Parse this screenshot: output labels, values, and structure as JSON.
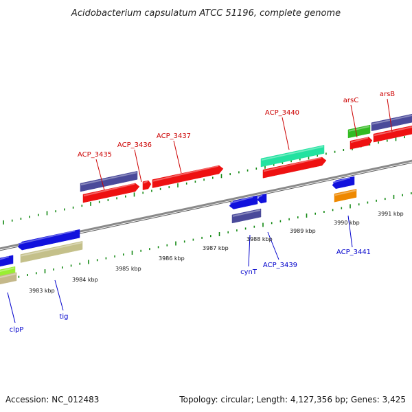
{
  "title": "Acidobacterium capsulatum ATCC 51196, complete genome",
  "footer": {
    "accession": "Accession: NC_012483",
    "topology": "Topology: circular; Length: 4,127,356 bp; Genes: 3,425"
  },
  "colors": {
    "forward_label": "#cc0000",
    "reverse_label": "#0000cc",
    "backbone": "#8a8a8a",
    "tick": "#118811"
  },
  "kbp_labels": [
    "3983 kbp",
    "3984 kbp",
    "3985 kbp",
    "3986 kbp",
    "3987 kbp",
    "3988 kbp",
    "3989 kbp",
    "3990 kbp",
    "3991 kbp"
  ],
  "gene_labels": [
    {
      "text": "ACP_3435",
      "strand": "forward"
    },
    {
      "text": "ACP_3436",
      "strand": "forward"
    },
    {
      "text": "ACP_3437",
      "strand": "forward"
    },
    {
      "text": "ACP_3440",
      "strand": "forward"
    },
    {
      "text": "arsC",
      "strand": "forward"
    },
    {
      "text": "arsB",
      "strand": "forward"
    },
    {
      "text": "clpP",
      "strand": "reverse"
    },
    {
      "text": "tig",
      "strand": "reverse"
    },
    {
      "text": "cynT",
      "strand": "reverse"
    },
    {
      "text": "ACP_3439",
      "strand": "reverse"
    },
    {
      "text": "ACP_3441",
      "strand": "reverse"
    }
  ],
  "genes": [
    {
      "name": "ACP_3435-cog",
      "color": "#4a4a9a",
      "strand": "forward"
    },
    {
      "name": "ACP_3435",
      "color": "#ee1111",
      "strand": "forward"
    },
    {
      "name": "ACP_3436",
      "color": "#ee1111",
      "strand": "forward"
    },
    {
      "name": "ACP_3437",
      "color": "#ee1111",
      "strand": "forward"
    },
    {
      "name": "ACP_3440-cog",
      "color": "#22e2a0",
      "strand": "forward"
    },
    {
      "name": "ACP_3440",
      "color": "#ee1111",
      "strand": "forward"
    },
    {
      "name": "arsC-cog",
      "color": "#33bb22",
      "strand": "forward"
    },
    {
      "name": "arsC",
      "color": "#ee1111",
      "strand": "forward"
    },
    {
      "name": "arsB-cog",
      "color": "#4a4a9a",
      "strand": "forward"
    },
    {
      "name": "arsB",
      "color": "#ee1111",
      "strand": "forward"
    },
    {
      "name": "clpP",
      "color": "#1111dd",
      "strand": "reverse"
    },
    {
      "name": "clpP-cog",
      "color": "#99ee33",
      "strand": "reverse"
    },
    {
      "name": "clpP-cog2",
      "color": "#c4b88a",
      "strand": "reverse"
    },
    {
      "name": "tig",
      "color": "#1111dd",
      "strand": "reverse"
    },
    {
      "name": "tig-cog",
      "color": "#c4c08a",
      "strand": "reverse"
    },
    {
      "name": "cynT",
      "color": "#1111dd",
      "strand": "reverse"
    },
    {
      "name": "ACP_3439",
      "color": "#1111dd",
      "strand": "reverse"
    },
    {
      "name": "cynT-cog",
      "color": "#4a4a9a",
      "strand": "reverse"
    },
    {
      "name": "ACP_3441",
      "color": "#1111dd",
      "strand": "reverse"
    },
    {
      "name": "ACP_3441-cog",
      "color": "#ee8800",
      "strand": "reverse"
    }
  ]
}
